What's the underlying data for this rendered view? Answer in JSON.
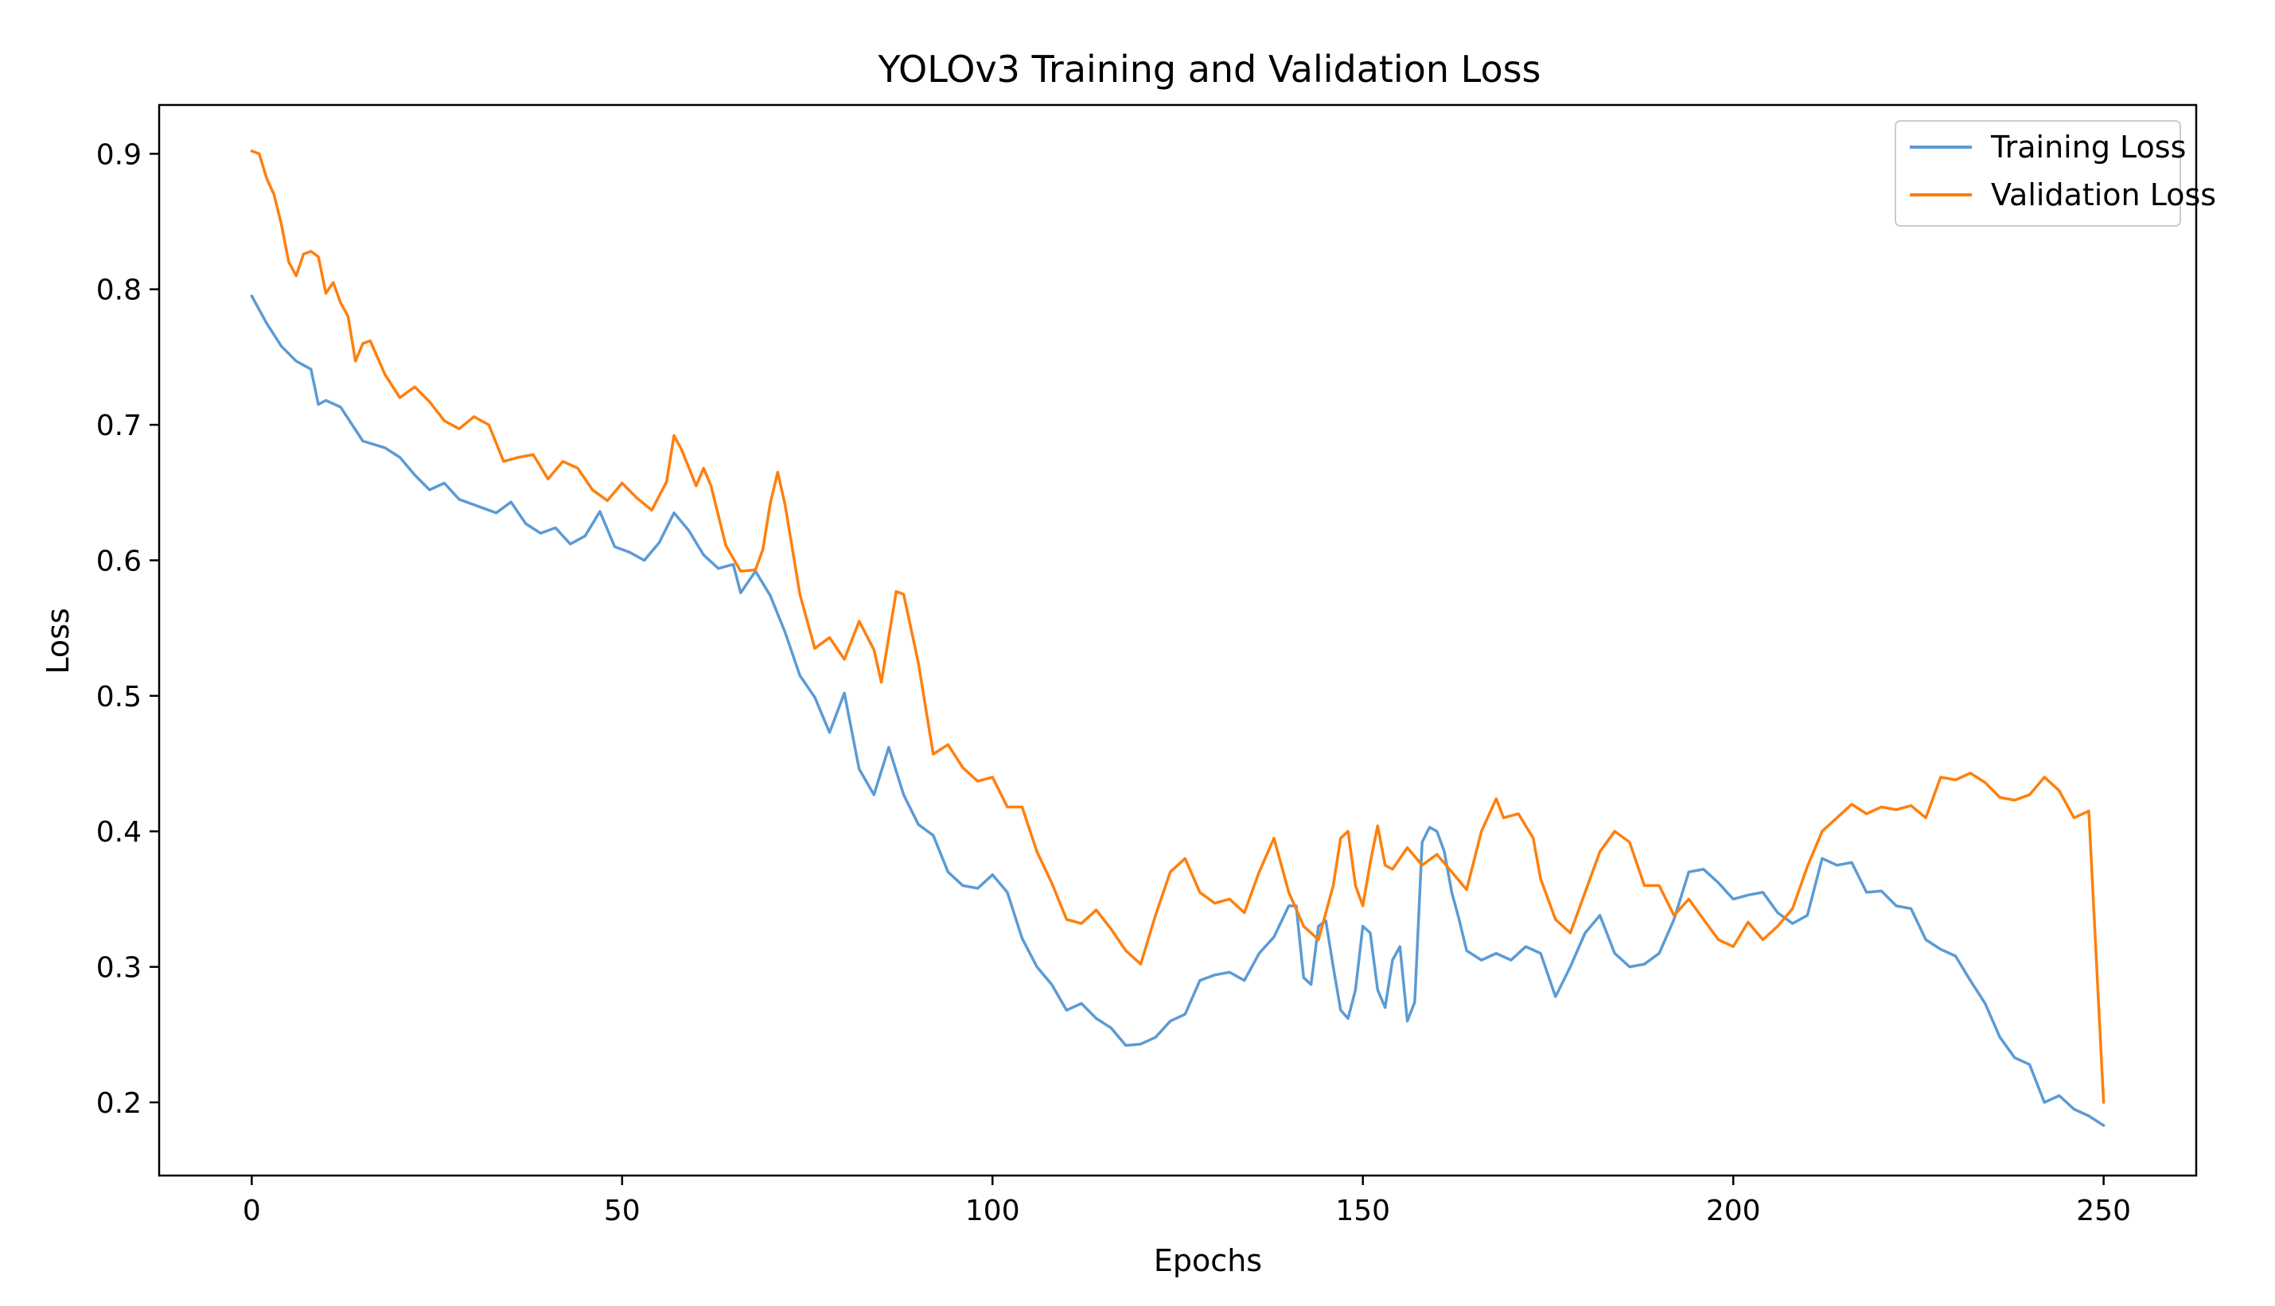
{
  "chart_data": {
    "type": "line",
    "title": "YOLOv3 Training and Validation Loss",
    "xlabel": "Epochs",
    "ylabel": "Loss",
    "xlim": [
      -12.5,
      262.5
    ],
    "ylim": [
      0.146,
      0.936
    ],
    "xticks": [
      0,
      50,
      100,
      150,
      200,
      250
    ],
    "yticks": [
      0.2,
      0.3,
      0.4,
      0.5,
      0.6,
      0.7,
      0.8,
      0.9
    ],
    "xtick_labels": [
      "0",
      "50",
      "100",
      "150",
      "200",
      "250"
    ],
    "ytick_labels": [
      "0.2",
      "0.3",
      "0.4",
      "0.5",
      "0.6",
      "0.7",
      "0.8",
      "0.9"
    ],
    "grid": false,
    "legend_position": "top-right",
    "series": [
      {
        "name": "Training Loss",
        "color": "#5b9bd5",
        "points": [
          [
            0,
            0.795
          ],
          [
            2,
            0.775
          ],
          [
            4,
            0.758
          ],
          [
            6,
            0.747
          ],
          [
            8,
            0.741
          ],
          [
            9,
            0.715
          ],
          [
            10,
            0.718
          ],
          [
            12,
            0.713
          ],
          [
            15,
            0.688
          ],
          [
            18,
            0.683
          ],
          [
            20,
            0.676
          ],
          [
            22,
            0.663
          ],
          [
            24,
            0.652
          ],
          [
            26,
            0.657
          ],
          [
            28,
            0.645
          ],
          [
            30,
            0.641
          ],
          [
            33,
            0.635
          ],
          [
            35,
            0.643
          ],
          [
            37,
            0.627
          ],
          [
            39,
            0.62
          ],
          [
            41,
            0.624
          ],
          [
            43,
            0.612
          ],
          [
            45,
            0.618
          ],
          [
            47,
            0.636
          ],
          [
            49,
            0.61
          ],
          [
            51,
            0.606
          ],
          [
            53,
            0.6
          ],
          [
            55,
            0.613
          ],
          [
            57,
            0.635
          ],
          [
            59,
            0.622
          ],
          [
            61,
            0.604
          ],
          [
            63,
            0.594
          ],
          [
            65,
            0.597
          ],
          [
            66,
            0.576
          ],
          [
            68,
            0.592
          ],
          [
            70,
            0.574
          ],
          [
            72,
            0.547
          ],
          [
            74,
            0.515
          ],
          [
            76,
            0.499
          ],
          [
            78,
            0.473
          ],
          [
            80,
            0.502
          ],
          [
            82,
            0.446
          ],
          [
            84,
            0.427
          ],
          [
            86,
            0.462
          ],
          [
            88,
            0.427
          ],
          [
            90,
            0.405
          ],
          [
            92,
            0.397
          ],
          [
            94,
            0.37
          ],
          [
            96,
            0.36
          ],
          [
            98,
            0.358
          ],
          [
            100,
            0.368
          ],
          [
            102,
            0.355
          ],
          [
            104,
            0.321
          ],
          [
            106,
            0.3
          ],
          [
            108,
            0.287
          ],
          [
            110,
            0.268
          ],
          [
            112,
            0.273
          ],
          [
            114,
            0.262
          ],
          [
            116,
            0.255
          ],
          [
            118,
            0.242
          ],
          [
            120,
            0.243
          ],
          [
            122,
            0.248
          ],
          [
            124,
            0.26
          ],
          [
            126,
            0.265
          ],
          [
            128,
            0.29
          ],
          [
            130,
            0.294
          ],
          [
            132,
            0.296
          ],
          [
            134,
            0.29
          ],
          [
            136,
            0.31
          ],
          [
            138,
            0.322
          ],
          [
            140,
            0.345
          ],
          [
            141,
            0.345
          ],
          [
            142,
            0.292
          ],
          [
            143,
            0.287
          ],
          [
            144,
            0.33
          ],
          [
            145,
            0.334
          ],
          [
            146,
            0.3
          ],
          [
            147,
            0.268
          ],
          [
            148,
            0.262
          ],
          [
            149,
            0.283
          ],
          [
            150,
            0.33
          ],
          [
            151,
            0.325
          ],
          [
            152,
            0.283
          ],
          [
            153,
            0.27
          ],
          [
            154,
            0.305
          ],
          [
            155,
            0.315
          ],
          [
            156,
            0.26
          ],
          [
            157,
            0.274
          ],
          [
            158,
            0.392
          ],
          [
            159,
            0.403
          ],
          [
            160,
            0.4
          ],
          [
            161,
            0.385
          ],
          [
            162,
            0.355
          ],
          [
            163,
            0.335
          ],
          [
            164,
            0.312
          ],
          [
            166,
            0.305
          ],
          [
            168,
            0.31
          ],
          [
            170,
            0.305
          ],
          [
            172,
            0.315
          ],
          [
            174,
            0.31
          ],
          [
            176,
            0.278
          ],
          [
            178,
            0.3
          ],
          [
            180,
            0.325
          ],
          [
            182,
            0.338
          ],
          [
            184,
            0.31
          ],
          [
            186,
            0.3
          ],
          [
            188,
            0.302
          ],
          [
            190,
            0.31
          ],
          [
            192,
            0.335
          ],
          [
            194,
            0.37
          ],
          [
            196,
            0.372
          ],
          [
            198,
            0.362
          ],
          [
            200,
            0.35
          ],
          [
            202,
            0.353
          ],
          [
            204,
            0.355
          ],
          [
            206,
            0.34
          ],
          [
            208,
            0.332
          ],
          [
            210,
            0.338
          ],
          [
            212,
            0.38
          ],
          [
            214,
            0.375
          ],
          [
            216,
            0.377
          ],
          [
            218,
            0.355
          ],
          [
            220,
            0.356
          ],
          [
            222,
            0.345
          ],
          [
            224,
            0.343
          ],
          [
            226,
            0.32
          ],
          [
            228,
            0.313
          ],
          [
            230,
            0.308
          ],
          [
            232,
            0.29
          ],
          [
            234,
            0.273
          ],
          [
            236,
            0.248
          ],
          [
            238,
            0.233
          ],
          [
            240,
            0.228
          ],
          [
            242,
            0.2
          ],
          [
            244,
            0.205
          ],
          [
            246,
            0.195
          ],
          [
            248,
            0.19
          ],
          [
            250,
            0.183
          ]
        ]
      },
      {
        "name": "Validation Loss",
        "color": "#ff7f0e",
        "points": [
          [
            0,
            0.902
          ],
          [
            1,
            0.9
          ],
          [
            2,
            0.882
          ],
          [
            3,
            0.87
          ],
          [
            4,
            0.848
          ],
          [
            5,
            0.82
          ],
          [
            6,
            0.81
          ],
          [
            7,
            0.826
          ],
          [
            8,
            0.828
          ],
          [
            9,
            0.824
          ],
          [
            10,
            0.797
          ],
          [
            11,
            0.805
          ],
          [
            12,
            0.79
          ],
          [
            13,
            0.78
          ],
          [
            14,
            0.747
          ],
          [
            15,
            0.76
          ],
          [
            16,
            0.762
          ],
          [
            18,
            0.737
          ],
          [
            20,
            0.72
          ],
          [
            22,
            0.728
          ],
          [
            24,
            0.717
          ],
          [
            26,
            0.703
          ],
          [
            28,
            0.697
          ],
          [
            30,
            0.706
          ],
          [
            32,
            0.7
          ],
          [
            34,
            0.673
          ],
          [
            36,
            0.676
          ],
          [
            38,
            0.678
          ],
          [
            40,
            0.66
          ],
          [
            42,
            0.673
          ],
          [
            44,
            0.668
          ],
          [
            46,
            0.652
          ],
          [
            48,
            0.644
          ],
          [
            50,
            0.657
          ],
          [
            52,
            0.646
          ],
          [
            54,
            0.637
          ],
          [
            56,
            0.658
          ],
          [
            57,
            0.692
          ],
          [
            58,
            0.682
          ],
          [
            60,
            0.655
          ],
          [
            61,
            0.668
          ],
          [
            62,
            0.655
          ],
          [
            64,
            0.611
          ],
          [
            66,
            0.592
          ],
          [
            68,
            0.593
          ],
          [
            69,
            0.608
          ],
          [
            70,
            0.642
          ],
          [
            71,
            0.665
          ],
          [
            72,
            0.641
          ],
          [
            74,
            0.575
          ],
          [
            76,
            0.535
          ],
          [
            78,
            0.543
          ],
          [
            80,
            0.527
          ],
          [
            82,
            0.555
          ],
          [
            84,
            0.534
          ],
          [
            85,
            0.51
          ],
          [
            87,
            0.577
          ],
          [
            88,
            0.575
          ],
          [
            90,
            0.524
          ],
          [
            92,
            0.457
          ],
          [
            94,
            0.464
          ],
          [
            96,
            0.447
          ],
          [
            98,
            0.437
          ],
          [
            100,
            0.44
          ],
          [
            102,
            0.418
          ],
          [
            104,
            0.418
          ],
          [
            106,
            0.385
          ],
          [
            108,
            0.362
          ],
          [
            110,
            0.335
          ],
          [
            112,
            0.332
          ],
          [
            114,
            0.342
          ],
          [
            116,
            0.328
          ],
          [
            118,
            0.312
          ],
          [
            120,
            0.302
          ],
          [
            122,
            0.338
          ],
          [
            124,
            0.37
          ],
          [
            126,
            0.38
          ],
          [
            128,
            0.355
          ],
          [
            130,
            0.347
          ],
          [
            132,
            0.35
          ],
          [
            134,
            0.34
          ],
          [
            136,
            0.37
          ],
          [
            138,
            0.395
          ],
          [
            140,
            0.355
          ],
          [
            142,
            0.33
          ],
          [
            144,
            0.32
          ],
          [
            146,
            0.36
          ],
          [
            147,
            0.395
          ],
          [
            148,
            0.4
          ],
          [
            149,
            0.36
          ],
          [
            150,
            0.345
          ],
          [
            151,
            0.377
          ],
          [
            152,
            0.404
          ],
          [
            153,
            0.375
          ],
          [
            154,
            0.372
          ],
          [
            156,
            0.388
          ],
          [
            158,
            0.375
          ],
          [
            160,
            0.383
          ],
          [
            162,
            0.37
          ],
          [
            164,
            0.357
          ],
          [
            166,
            0.4
          ],
          [
            168,
            0.424
          ],
          [
            169,
            0.41
          ],
          [
            171,
            0.413
          ],
          [
            173,
            0.395
          ],
          [
            174,
            0.365
          ],
          [
            176,
            0.335
          ],
          [
            178,
            0.325
          ],
          [
            180,
            0.355
          ],
          [
            182,
            0.385
          ],
          [
            184,
            0.4
          ],
          [
            186,
            0.392
          ],
          [
            188,
            0.36
          ],
          [
            190,
            0.36
          ],
          [
            192,
            0.338
          ],
          [
            194,
            0.35
          ],
          [
            196,
            0.335
          ],
          [
            198,
            0.32
          ],
          [
            200,
            0.315
          ],
          [
            202,
            0.333
          ],
          [
            204,
            0.32
          ],
          [
            206,
            0.33
          ],
          [
            208,
            0.343
          ],
          [
            210,
            0.374
          ],
          [
            212,
            0.4
          ],
          [
            214,
            0.41
          ],
          [
            216,
            0.42
          ],
          [
            218,
            0.413
          ],
          [
            220,
            0.418
          ],
          [
            222,
            0.416
          ],
          [
            224,
            0.419
          ],
          [
            226,
            0.41
          ],
          [
            228,
            0.44
          ],
          [
            230,
            0.438
          ],
          [
            232,
            0.443
          ],
          [
            234,
            0.436
          ],
          [
            236,
            0.425
          ],
          [
            238,
            0.423
          ],
          [
            240,
            0.427
          ],
          [
            242,
            0.44
          ],
          [
            244,
            0.43
          ],
          [
            246,
            0.41
          ],
          [
            248,
            0.415
          ],
          [
            250,
            0.2
          ]
        ]
      }
    ]
  }
}
